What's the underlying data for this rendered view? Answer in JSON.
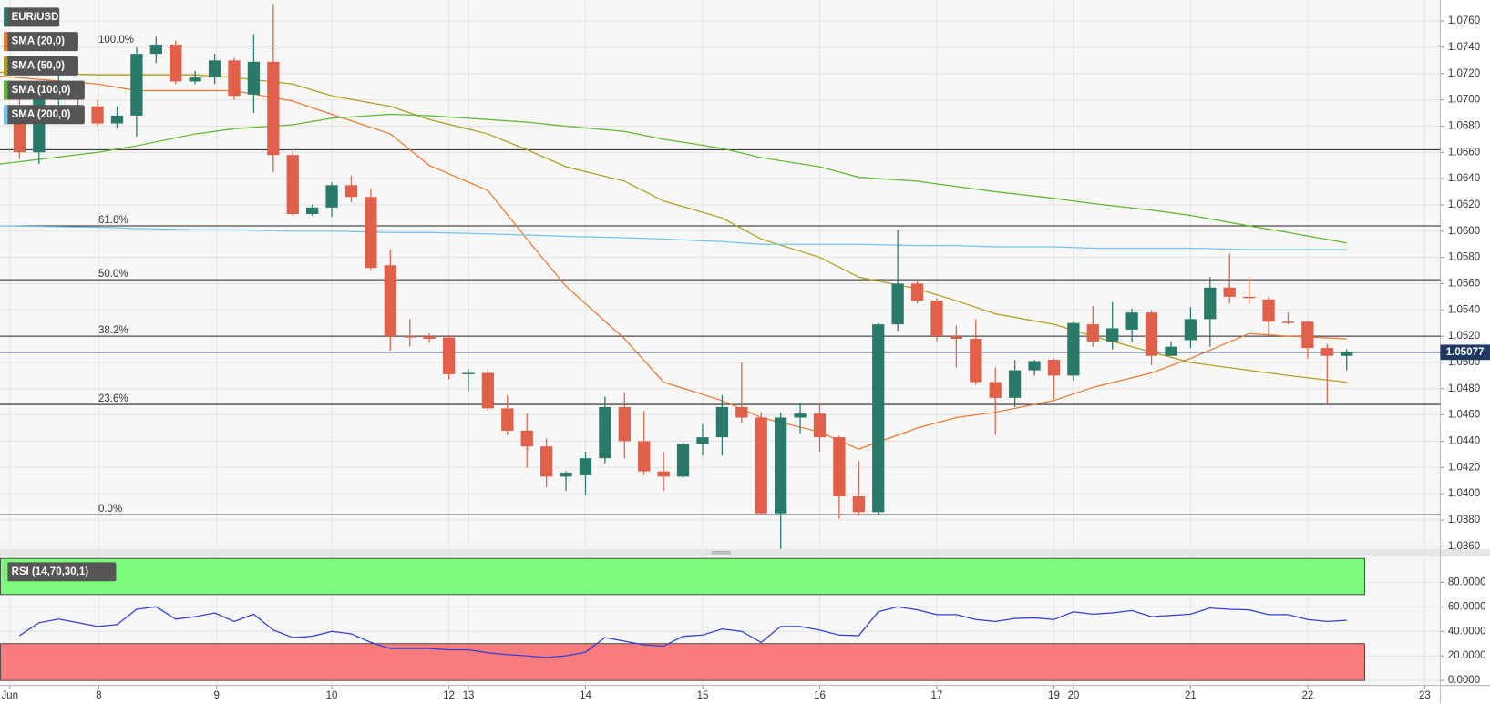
{
  "chart_data": [
    {
      "type": "candlestick",
      "name": "EUR/USD",
      "up_color": "#297a68",
      "down_color": "#e0604a",
      "open": [
        1.0695,
        1.066,
        1.07,
        1.071,
        1.0695,
        1.0682,
        1.0688,
        1.0735,
        1.0742,
        1.0714,
        1.0717,
        1.073,
        1.0704,
        1.0729,
        1.0658,
        1.0613,
        1.0618,
        1.0635,
        1.0626,
        1.0574,
        1.052,
        1.052,
        1.0519,
        1.0491,
        1.0492,
        1.0465,
        1.0448,
        1.0436,
        1.0413,
        1.0414,
        1.0427,
        1.0466,
        1.044,
        1.0417,
        1.0413,
        1.0438,
        1.0443,
        1.0466,
        1.0458,
        1.0385,
        1.0458,
        1.0461,
        1.0443,
        1.0398,
        1.0386,
        1.0529,
        1.056,
        1.0547,
        1.052,
        1.0518,
        1.0485,
        1.0473,
        1.0494,
        1.0502,
        1.049,
        1.0529,
        1.0516,
        1.0525,
        1.0538,
        1.0505,
        1.0517,
        1.0533,
        1.0557,
        1.055,
        1.0548,
        1.0531,
        1.0531,
        1.0511,
        1.0505
      ],
      "high": [
        1.07,
        1.071,
        1.072,
        1.0713,
        1.07,
        1.0695,
        1.074,
        1.0748,
        1.0745,
        1.0722,
        1.0735,
        1.0732,
        1.075,
        1.0773,
        1.0662,
        1.062,
        1.0637,
        1.0642,
        1.0632,
        1.0586,
        1.0533,
        1.0522,
        1.0521,
        1.0495,
        1.0495,
        1.0475,
        1.0461,
        1.0442,
        1.0417,
        1.0432,
        1.0474,
        1.0477,
        1.0463,
        1.0432,
        1.044,
        1.0453,
        1.0475,
        1.05,
        1.0462,
        1.0462,
        1.0469,
        1.0468,
        1.0444,
        1.0425,
        1.053,
        1.0601,
        1.0562,
        1.0549,
        1.0528,
        1.0533,
        1.0496,
        1.0502,
        1.0502,
        1.0503,
        1.0531,
        1.0543,
        1.0546,
        1.0541,
        1.054,
        1.0516,
        1.0542,
        1.0565,
        1.0583,
        1.0565,
        1.055,
        1.0538,
        1.0532,
        1.0514,
        1.051
      ],
      "low": [
        1.0655,
        1.0651,
        1.0695,
        1.0695,
        1.068,
        1.0678,
        1.0672,
        1.0728,
        1.0712,
        1.0712,
        1.0712,
        1.07,
        1.069,
        1.0645,
        1.0612,
        1.0612,
        1.0611,
        1.0622,
        1.057,
        1.0509,
        1.0512,
        1.0515,
        1.0487,
        1.0478,
        1.0463,
        1.0445,
        1.042,
        1.0405,
        1.0402,
        1.0399,
        1.0423,
        1.0427,
        1.0414,
        1.0402,
        1.0412,
        1.0429,
        1.0429,
        1.0454,
        1.0384,
        1.0358,
        1.0446,
        1.0432,
        1.0381,
        1.0383,
        1.0384,
        1.0524,
        1.0545,
        1.0516,
        1.0496,
        1.0483,
        1.0445,
        1.0466,
        1.049,
        1.0472,
        1.0486,
        1.0512,
        1.051,
        1.0515,
        1.0498,
        1.0505,
        1.0511,
        1.0512,
        1.0545,
        1.0544,
        1.052,
        1.0529,
        1.0503,
        1.0469,
        1.0494
      ],
      "close": [
        1.066,
        1.0705,
        1.0712,
        1.07,
        1.0682,
        1.0688,
        1.0735,
        1.0742,
        1.0714,
        1.0717,
        1.073,
        1.0703,
        1.0729,
        1.0658,
        1.0613,
        1.0618,
        1.0635,
        1.0626,
        1.0572,
        1.052,
        1.0519,
        1.0518,
        1.0491,
        1.0492,
        1.0465,
        1.0448,
        1.0436,
        1.0413,
        1.0416,
        1.0427,
        1.0466,
        1.044,
        1.0417,
        1.0413,
        1.0438,
        1.0443,
        1.0466,
        1.0458,
        1.0385,
        1.0458,
        1.0461,
        1.0443,
        1.0398,
        1.0386,
        1.0529,
        1.056,
        1.0547,
        1.052,
        1.0518,
        1.0485,
        1.0473,
        1.0494,
        1.0501,
        1.049,
        1.053,
        1.0516,
        1.0526,
        1.0538,
        1.0505,
        1.0512,
        1.0533,
        1.0557,
        1.055,
        1.0549,
        1.0531,
        1.053,
        1.0511,
        1.0505,
        1.0508
      ],
      "overlays": [
        {
          "name": "SMA (20,0)",
          "color": "#ec7a30",
          "x": [
            -1,
            4,
            6,
            9,
            11,
            14,
            16,
            19,
            21,
            24,
            26,
            28,
            31,
            33,
            36,
            38,
            41,
            43,
            46,
            48,
            50,
            53,
            55,
            58,
            60,
            63,
            65,
            68
          ],
          "values": [
            1.0718,
            1.0712,
            1.0707,
            1.0707,
            1.0707,
            1.0699,
            1.0689,
            1.0674,
            1.065,
            1.0631,
            1.0594,
            1.0558,
            1.0518,
            1.0485,
            1.0471,
            1.0458,
            1.0447,
            1.0434,
            1.045,
            1.0458,
            1.0462,
            1.0471,
            1.0481,
            1.0492,
            1.0503,
            1.0522,
            1.052,
            1.0518
          ]
        },
        {
          "name": "SMA (50,0)",
          "color": "#b19e1e",
          "x": [
            -1,
            4,
            6,
            9,
            11,
            14,
            16,
            19,
            21,
            24,
            26,
            28,
            31,
            33,
            36,
            38,
            41,
            43,
            46,
            48,
            50,
            53,
            55,
            58,
            60,
            63,
            65,
            68
          ],
          "values": [
            1.0721,
            1.0719,
            1.0719,
            1.0719,
            1.0717,
            1.0712,
            1.0703,
            1.0695,
            1.0685,
            1.0674,
            1.0662,
            1.0649,
            1.0638,
            1.0623,
            1.061,
            1.0594,
            1.058,
            1.0565,
            1.0556,
            1.0547,
            1.0537,
            1.0529,
            1.052,
            1.0508,
            1.05,
            1.0494,
            1.049,
            1.0485
          ]
        },
        {
          "name": "SMA (100,0)",
          "color": "#5cb82e",
          "x": [
            -1,
            4,
            6,
            9,
            11,
            14,
            16,
            19,
            21,
            24,
            26,
            28,
            31,
            33,
            36,
            38,
            41,
            43,
            46,
            48,
            50,
            53,
            55,
            58,
            60,
            63,
            65,
            68
          ],
          "values": [
            1.0651,
            1.066,
            1.0665,
            1.0674,
            1.0678,
            1.0681,
            1.0686,
            1.0689,
            1.0688,
            1.0685,
            1.0683,
            1.068,
            1.0676,
            1.067,
            1.0663,
            1.0656,
            1.0649,
            1.0641,
            1.0638,
            1.0634,
            1.063,
            1.0625,
            1.0621,
            1.0616,
            1.0612,
            1.0604,
            1.0599,
            1.0591
          ]
        },
        {
          "name": "SMA (200,0)",
          "color": "#72c2ee",
          "x": [
            -1,
            4,
            6,
            9,
            11,
            14,
            16,
            19,
            21,
            24,
            26,
            28,
            31,
            33,
            36,
            38,
            41,
            43,
            46,
            48,
            50,
            53,
            55,
            58,
            60,
            63,
            65,
            68
          ],
          "values": [
            1.0604,
            1.0603,
            1.0602,
            1.0601,
            1.0601,
            1.06,
            1.06,
            1.0599,
            1.0599,
            1.0598,
            1.0597,
            1.0596,
            1.0595,
            1.0594,
            1.0592,
            1.059,
            1.059,
            1.059,
            1.0589,
            1.0589,
            1.0588,
            1.0588,
            1.0587,
            1.0587,
            1.0587,
            1.0586,
            1.0586,
            1.0586
          ]
        }
      ],
      "levels": [
        {
          "label": "100.0%",
          "value": 1.0741
        },
        {
          "value": 1.0662
        },
        {
          "label": "61.8%",
          "value": 1.0604
        },
        {
          "label": "50.0%",
          "value": 1.0563
        },
        {
          "label": "38.2%",
          "value": 1.052
        },
        {
          "label": "23.6%",
          "value": 1.0468
        },
        {
          "label": "0.0%",
          "value": 1.0384
        }
      ],
      "last_price": 1.05077,
      "last_price_color": "#1f3864",
      "xlim": [
        -1,
        72.8
      ],
      "xticks": [
        {
          "value": -0.5,
          "label": "Jun"
        },
        {
          "value": 4.06,
          "label": "8"
        },
        {
          "value": 10.1,
          "label": "9"
        },
        {
          "value": 16,
          "label": "10"
        },
        {
          "value": 22,
          "label": "12"
        },
        {
          "value": 23,
          "label": "13"
        },
        {
          "value": 29,
          "label": "14"
        },
        {
          "value": 35,
          "label": "15"
        },
        {
          "value": 41,
          "label": "16"
        },
        {
          "value": 47,
          "label": "17"
        },
        {
          "value": 53,
          "label": "19"
        },
        {
          "value": 54,
          "label": "20"
        },
        {
          "value": 60,
          "label": "21"
        },
        {
          "value": 66,
          "label": "22"
        },
        {
          "value": 72,
          "label": "23"
        }
      ],
      "ylim": [
        1.0358,
        1.0776
      ],
      "yticks": [
        {
          "value": 1.036,
          "label": "1.0360"
        },
        {
          "value": 1.038,
          "label": "1.0380"
        },
        {
          "value": 1.04,
          "label": "1.0400"
        },
        {
          "value": 1.042,
          "label": "1.0420"
        },
        {
          "value": 1.044,
          "label": "1.0440"
        },
        {
          "value": 1.046,
          "label": "1.0460"
        },
        {
          "value": 1.048,
          "label": "1.0480"
        },
        {
          "value": 1.05,
          "label": "1.0500"
        },
        {
          "value": 1.052,
          "label": "1.0520"
        },
        {
          "value": 1.054,
          "label": "1.0540"
        },
        {
          "value": 1.056,
          "label": "1.0560"
        },
        {
          "value": 1.058,
          "label": "1.0580"
        },
        {
          "value": 1.06,
          "label": "1.0600"
        },
        {
          "value": 1.062,
          "label": "1.0620"
        },
        {
          "value": 1.064,
          "label": "1.0640"
        },
        {
          "value": 1.066,
          "label": "1.0660"
        },
        {
          "value": 1.068,
          "label": "1.0680"
        },
        {
          "value": 1.07,
          "label": "1.0700"
        },
        {
          "value": 1.072,
          "label": "1.0720"
        },
        {
          "value": 1.074,
          "label": "1.0740"
        },
        {
          "value": 1.076,
          "label": "1.0760"
        }
      ],
      "grid": true
    },
    {
      "type": "line",
      "name": "RSI (14,70,30,1)",
      "color": "#2f3fd4",
      "values": [
        36.5,
        47,
        50,
        47,
        44,
        45.5,
        58,
        60,
        50,
        52,
        55,
        48,
        54,
        41,
        35,
        36,
        40,
        38,
        31,
        26,
        26,
        26,
        25,
        25,
        22.5,
        21,
        20,
        18.6,
        20,
        23,
        35,
        32,
        29,
        28,
        36,
        37,
        42,
        40,
        31,
        44,
        44,
        41,
        37,
        36.5,
        56,
        60,
        57.5,
        53.6,
        53.6,
        49.7,
        48,
        50.5,
        51,
        49.7,
        56,
        54,
        55,
        57,
        52,
        53,
        54,
        59,
        58,
        57.5,
        53.6,
        53.6,
        49.7,
        48,
        49
      ],
      "overbought": 70,
      "oversold": 30,
      "overbought_color": "#7cfa7c",
      "oversold_color": "#fa7c7c",
      "ylim": [
        -4,
        101
      ],
      "yticks": [
        {
          "value": 0,
          "label": "0.0000"
        },
        {
          "value": 20,
          "label": "20.0000"
        },
        {
          "value": 40,
          "label": "40.0000"
        },
        {
          "value": 60,
          "label": "60.0000"
        },
        {
          "value": 80,
          "label": "80.0000"
        }
      ],
      "grid": true
    }
  ]
}
